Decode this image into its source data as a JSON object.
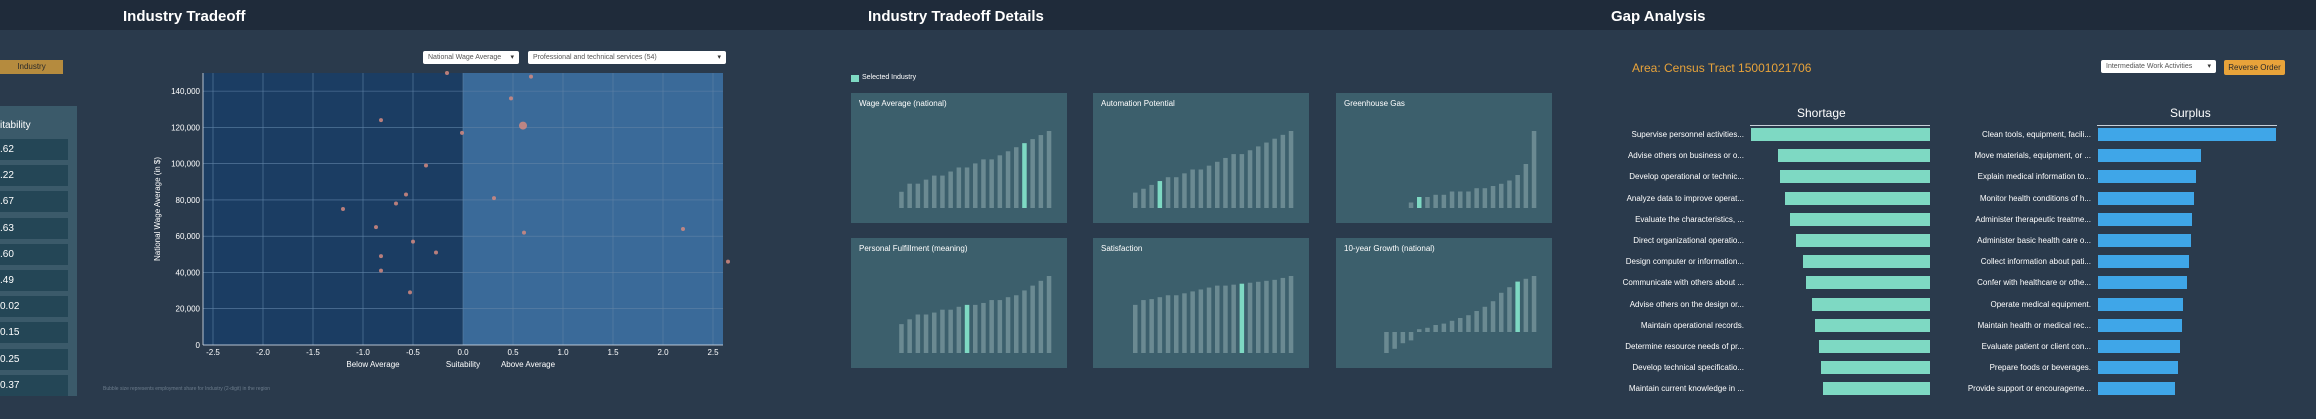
{
  "panels": {
    "tradeoff_title": "Industry Tradeoff",
    "details_title": "Industry Tradeoff Details",
    "gap_title": "Gap Analysis"
  },
  "left": {
    "industry_button": "Industry",
    "suitability_header": "itability",
    "suitability_values": [
      ".62",
      ".22",
      ".67",
      ".63",
      ".60",
      ".49",
      "0.02",
      "0.15",
      "0.25",
      "0.37"
    ]
  },
  "scatter": {
    "dropdown_metric": "National Wage Average",
    "dropdown_industry": "Professional and technical services (54)",
    "footnote": "Bubble size represents employment share for Industry (2-digit) in the region",
    "accent_colors": {
      "below": "#1b3d63",
      "above": "#3a6a99",
      "point": "#d48a80"
    },
    "chart_data": {
      "type": "scatter",
      "title": "Industry Tradeoff",
      "xlabel": "Suitability",
      "ylabel": "National Wage Average (in $)",
      "x_region_labels": [
        "Below Average",
        "Above Average"
      ],
      "xlim": [
        -2.6,
        2.6
      ],
      "ylim": [
        0,
        150000
      ],
      "x_ticks": [
        "-2.5",
        "-2.0",
        "-1.5",
        "-1.0",
        "-0.5",
        "0.0",
        "0.5",
        "1.0",
        "1.5",
        "2.0",
        "2.5"
      ],
      "y_ticks": [
        "0",
        "20,000",
        "40,000",
        "60,000",
        "80,000",
        "100,000",
        "120,000",
        "140,000"
      ],
      "points": [
        {
          "x": -0.16,
          "y": 150000,
          "r": 2
        },
        {
          "x": -0.82,
          "y": 124000,
          "r": 2
        },
        {
          "x": 0.48,
          "y": 136000,
          "r": 2
        },
        {
          "x": 0.68,
          "y": 148000,
          "r": 2
        },
        {
          "x": 0.6,
          "y": 121000,
          "r": 4
        },
        {
          "x": -0.01,
          "y": 117000,
          "r": 2
        },
        {
          "x": -0.37,
          "y": 99000,
          "r": 2
        },
        {
          "x": -0.57,
          "y": 83000,
          "r": 2
        },
        {
          "x": -0.67,
          "y": 78000,
          "r": 2
        },
        {
          "x": 0.31,
          "y": 81000,
          "r": 2
        },
        {
          "x": -1.2,
          "y": 75000,
          "r": 2
        },
        {
          "x": -0.87,
          "y": 65000,
          "r": 2
        },
        {
          "x": 0.61,
          "y": 62000,
          "r": 2
        },
        {
          "x": 2.2,
          "y": 64000,
          "r": 2
        },
        {
          "x": -0.5,
          "y": 57000,
          "r": 2
        },
        {
          "x": -0.27,
          "y": 51000,
          "r": 2
        },
        {
          "x": -0.82,
          "y": 49000,
          "r": 2
        },
        {
          "x": -0.82,
          "y": 41000,
          "r": 2
        },
        {
          "x": -0.53,
          "y": 29000,
          "r": 2
        },
        {
          "x": 2.65,
          "y": 46000,
          "r": 2
        }
      ]
    }
  },
  "details": {
    "legend": "Selected Industry",
    "colors": {
      "bar": "#6b8a92",
      "selected": "#7ed9c3"
    },
    "cards": [
      {
        "title": "Wage Average (national)",
        "values": [
          2,
          3,
          3,
          3.5,
          4,
          4,
          4.5,
          5,
          5,
          5.5,
          6,
          6,
          6.5,
          7,
          7.5,
          8,
          8.5,
          9,
          9.5
        ],
        "selected": 15
      },
      {
        "title": "Automation Potential",
        "values": [
          2,
          2.5,
          3,
          3.5,
          4,
          4,
          4.5,
          5,
          5,
          5.5,
          6,
          6.5,
          7,
          7,
          7.5,
          8,
          8.5,
          9,
          9.5,
          10
        ],
        "selected": 3
      },
      {
        "title": "Greenhouse Gas",
        "values": [
          0.5,
          1,
          1,
          1.2,
          1.2,
          1.5,
          1.5,
          1.5,
          1.8,
          1.8,
          2,
          2.2,
          2.5,
          3,
          4,
          7
        ],
        "selected": 1
      },
      {
        "title": "Personal Fulfillment (meaning)",
        "values": [
          3,
          3.5,
          4,
          4,
          4.2,
          4.5,
          4.5,
          4.8,
          5,
          5,
          5.2,
          5.5,
          5.5,
          5.8,
          6,
          6.5,
          7,
          7.5,
          8
        ],
        "selected": 8
      },
      {
        "title": "Satisfaction",
        "values": [
          5,
          5.5,
          5.6,
          5.8,
          6,
          6,
          6.2,
          6.4,
          6.6,
          6.8,
          7,
          7,
          7.1,
          7.2,
          7.3,
          7.4,
          7.5,
          7.6,
          7.8,
          8
        ],
        "selected": 13
      },
      {
        "title": "10-year Growth (national)",
        "values": [
          -1.5,
          -1.2,
          -0.8,
          -0.6,
          0.2,
          0.3,
          0.5,
          0.6,
          0.8,
          1,
          1.2,
          1.5,
          1.8,
          2.2,
          2.8,
          3.2,
          3.6,
          3.8,
          4
        ],
        "selected": 16
      }
    ]
  },
  "gap": {
    "area_label": "Area: Census Tract 15001021706",
    "dropdown": "Intermediate Work Activities",
    "reverse_button": "Reverse Order",
    "shortage_header": "Shortage",
    "surplus_header": "Surplus",
    "colors": {
      "shortage": "#7ed9c3",
      "surplus": "#3fa6e8"
    },
    "shortage": [
      {
        "label": "Supervise personnel activities...",
        "value": 1.0
      },
      {
        "label": "Advise others on business or o...",
        "value": 0.85
      },
      {
        "label": "Develop operational or technic...",
        "value": 0.84
      },
      {
        "label": "Analyze data to improve operat...",
        "value": 0.81
      },
      {
        "label": "Evaluate the characteristics, ...",
        "value": 0.78
      },
      {
        "label": "Direct organizational operatio...",
        "value": 0.75
      },
      {
        "label": "Design computer or information...",
        "value": 0.71
      },
      {
        "label": "Communicate with others about ...",
        "value": 0.69
      },
      {
        "label": "Advise others on the design or...",
        "value": 0.66
      },
      {
        "label": "Maintain operational records.",
        "value": 0.64
      },
      {
        "label": "Determine resource needs of pr...",
        "value": 0.62
      },
      {
        "label": "Develop technical specificatio...",
        "value": 0.61
      },
      {
        "label": "Maintain current knowledge in ...",
        "value": 0.6
      }
    ],
    "surplus": [
      {
        "label": "Clean tools, equipment, facili...",
        "value": 1.0
      },
      {
        "label": "Move materials, equipment, or ...",
        "value": 0.58
      },
      {
        "label": "Explain medical information to...",
        "value": 0.55
      },
      {
        "label": "Monitor health conditions of h...",
        "value": 0.54
      },
      {
        "label": "Administer therapeutic treatme...",
        "value": 0.53
      },
      {
        "label": "Administer basic health care o...",
        "value": 0.52
      },
      {
        "label": "Collect information about pati...",
        "value": 0.51
      },
      {
        "label": "Confer with healthcare or othe...",
        "value": 0.5
      },
      {
        "label": "Operate medical equipment.",
        "value": 0.48
      },
      {
        "label": "Maintain health or medical rec...",
        "value": 0.47
      },
      {
        "label": "Evaluate patient or client con...",
        "value": 0.46
      },
      {
        "label": "Prepare foods or beverages.",
        "value": 0.45
      },
      {
        "label": "Provide support or encourageme...",
        "value": 0.43
      }
    ]
  }
}
